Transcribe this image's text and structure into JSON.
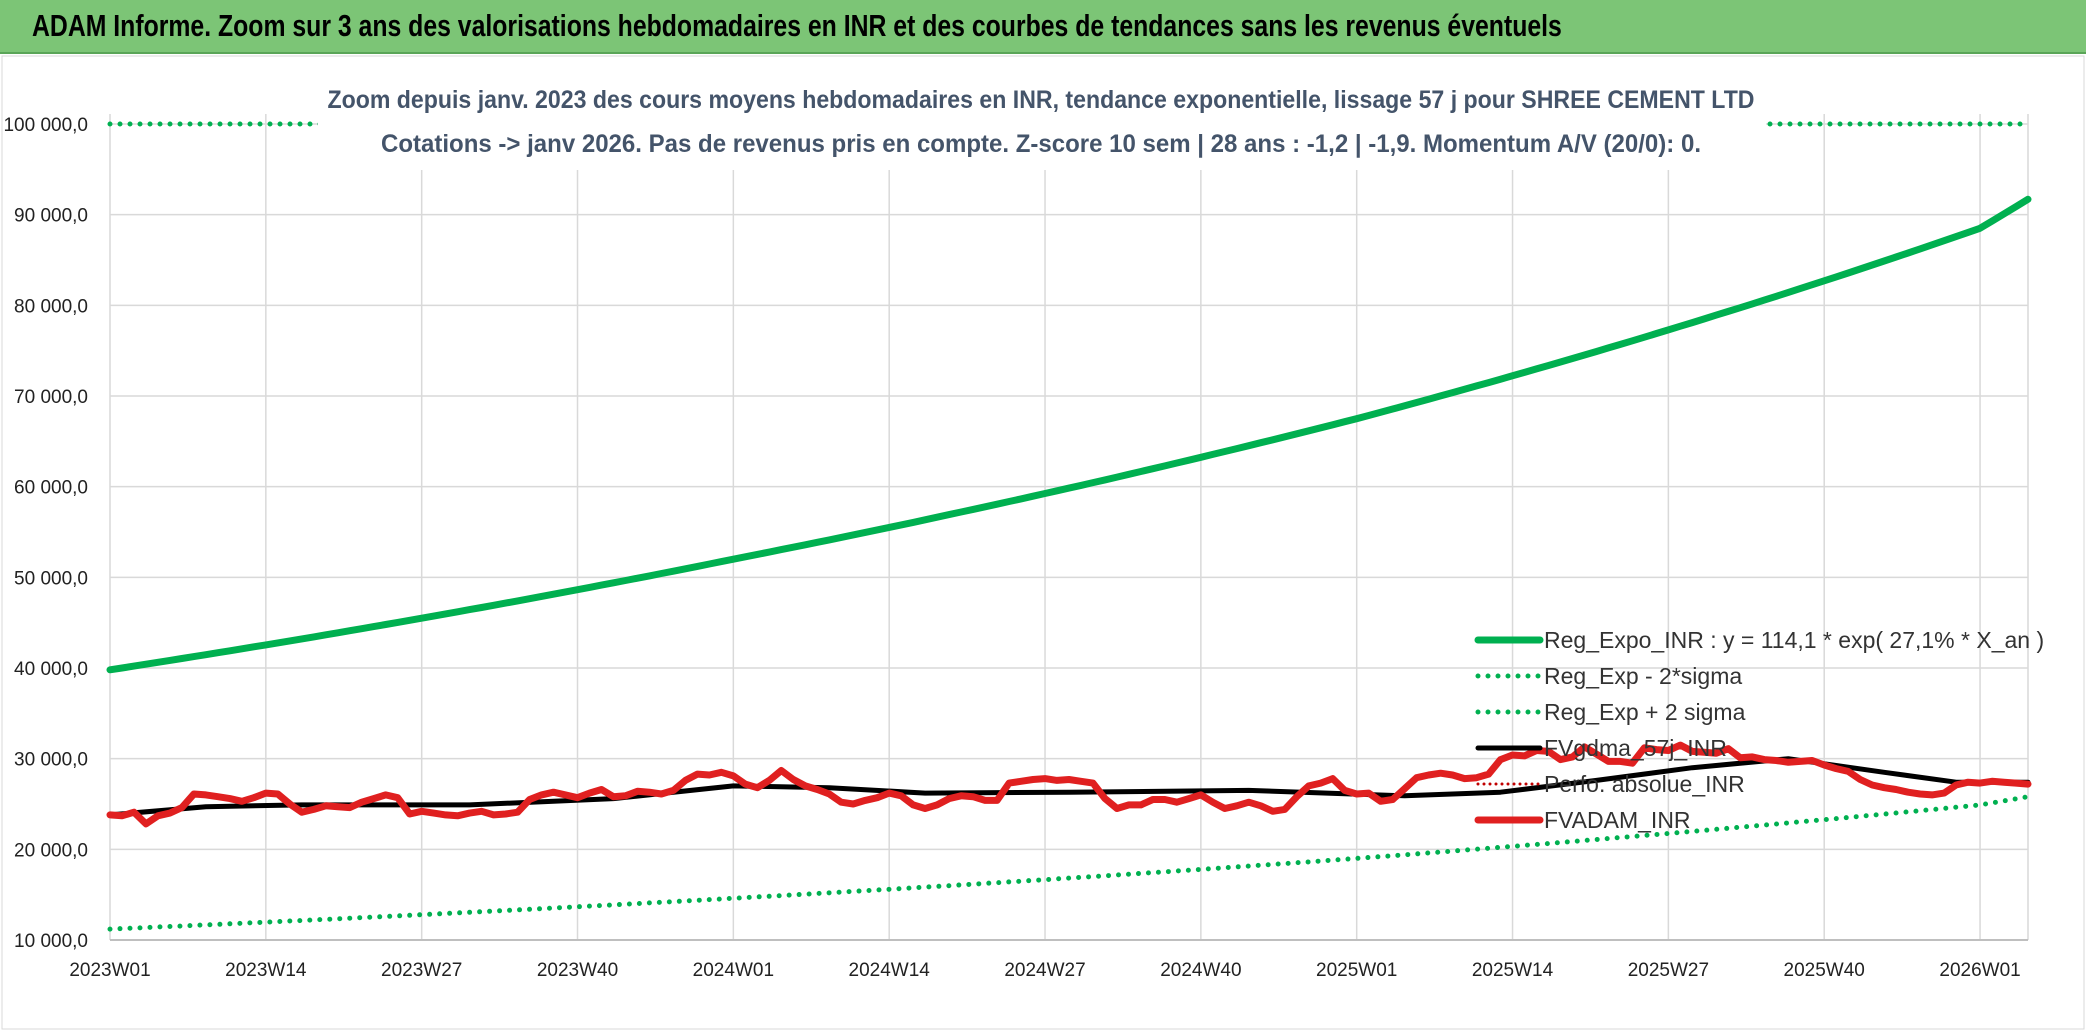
{
  "page": {
    "title": "ADAM Informe. Zoom sur 3 ans des valorisations hebdomadaires en INR et des courbes de tendances sans les revenus éventuels"
  },
  "chart_data": {
    "type": "line",
    "title": "Zoom depuis janv. 2023 des cours moyens hebdomadaires en INR, tendance exponentielle, lissage 57 j pour SHREE CEMENT LTD",
    "subtitle": "Cotations -> janv 2026. Pas de revenus pris en compte. Z-score 10 sem | 28 ans : -1,2 | -1,9. Momentum A/V (20/0): 0.",
    "ylim": [
      10000,
      100000
    ],
    "yticks": [
      10000,
      20000,
      30000,
      40000,
      50000,
      60000,
      70000,
      80000,
      90000,
      100000
    ],
    "ytick_labels": [
      "10 000,0",
      "20 000,0",
      "30 000,0",
      "40 000,0",
      "50 000,0",
      "60 000,0",
      "70 000,0",
      "80 000,0",
      "90 000,0",
      "100 000,0"
    ],
    "x_tick_labels": [
      "2023W01",
      "2023W14",
      "2023W27",
      "2023W40",
      "2024W01",
      "2024W14",
      "2024W27",
      "2024W40",
      "2025W01",
      "2025W14",
      "2025W27",
      "2025W40",
      "2026W01"
    ],
    "weeks_total": 161,
    "grid": true,
    "legend_position": "bottom-right",
    "series": [
      {
        "name": "Reg_Expo_INR : y = 114,1 * exp( 27,1% *  X_an )",
        "style": "solid-thick",
        "color": "#00b050",
        "points": [
          [
            0,
            39800
          ],
          [
            52,
            52000
          ],
          [
            104,
            67500
          ],
          [
            156,
            88500
          ],
          [
            160,
            91700
          ]
        ]
      },
      {
        "name": "Reg_Exp - 2*sigma",
        "style": "dotted",
        "color": "#00b050",
        "points": [
          [
            0,
            11200
          ],
          [
            52,
            14600
          ],
          [
            104,
            19000
          ],
          [
            156,
            24900
          ],
          [
            160,
            25800
          ]
        ]
      },
      {
        "name": "Reg_Exp + 2 sigma",
        "style": "dotted",
        "color": "#00b050",
        "points": [
          [
            0,
            100000
          ],
          [
            160,
            100000
          ]
        ]
      },
      {
        "name": "FVgdma_57j_INR",
        "style": "solid",
        "color": "#000000",
        "points": [
          [
            0,
            23800
          ],
          [
            8,
            24700
          ],
          [
            16,
            24900
          ],
          [
            30,
            24900
          ],
          [
            42,
            25600
          ],
          [
            52,
            27000
          ],
          [
            60,
            26800
          ],
          [
            68,
            26200
          ],
          [
            80,
            26300
          ],
          [
            95,
            26500
          ],
          [
            108,
            25900
          ],
          [
            116,
            26300
          ],
          [
            124,
            27600
          ],
          [
            132,
            29000
          ],
          [
            140,
            30000
          ],
          [
            148,
            28500
          ],
          [
            154,
            27400
          ],
          [
            160,
            27400
          ]
        ]
      },
      {
        "name": "Perfo. absolue_INR",
        "style": "dotted-thin",
        "color": "#c00000",
        "points": []
      },
      {
        "name": "FVADAM_INR",
        "style": "solid-thick",
        "color": "#e02020",
        "points": [
          [
            0,
            23800
          ],
          [
            1,
            23700
          ],
          [
            2,
            24100
          ],
          [
            3,
            22800
          ],
          [
            4,
            23700
          ],
          [
            5,
            24000
          ],
          [
            6,
            24600
          ],
          [
            7,
            26100
          ],
          [
            8,
            26000
          ],
          [
            9,
            25800
          ],
          [
            10,
            25600
          ],
          [
            11,
            25300
          ],
          [
            12,
            25700
          ],
          [
            13,
            26200
          ],
          [
            14,
            26100
          ],
          [
            15,
            25000
          ],
          [
            16,
            24100
          ],
          [
            17,
            24400
          ],
          [
            18,
            24800
          ],
          [
            19,
            24700
          ],
          [
            20,
            24600
          ],
          [
            21,
            25200
          ],
          [
            22,
            25600
          ],
          [
            23,
            26000
          ],
          [
            24,
            25700
          ],
          [
            25,
            23900
          ],
          [
            26,
            24200
          ],
          [
            27,
            24000
          ],
          [
            28,
            23800
          ],
          [
            29,
            23700
          ],
          [
            30,
            24000
          ],
          [
            31,
            24200
          ],
          [
            32,
            23800
          ],
          [
            33,
            23900
          ],
          [
            34,
            24100
          ],
          [
            35,
            25500
          ],
          [
            36,
            26000
          ],
          [
            37,
            26300
          ],
          [
            38,
            26000
          ],
          [
            39,
            25700
          ],
          [
            40,
            26200
          ],
          [
            41,
            26600
          ],
          [
            42,
            25800
          ],
          [
            43,
            25900
          ],
          [
            44,
            26400
          ],
          [
            45,
            26300
          ],
          [
            46,
            26100
          ],
          [
            47,
            26500
          ],
          [
            48,
            27600
          ],
          [
            49,
            28300
          ],
          [
            50,
            28200
          ],
          [
            51,
            28500
          ],
          [
            52,
            28100
          ],
          [
            53,
            27200
          ],
          [
            54,
            26800
          ],
          [
            55,
            27600
          ],
          [
            56,
            28700
          ],
          [
            57,
            27700
          ],
          [
            58,
            27000
          ],
          [
            59,
            26600
          ],
          [
            60,
            26100
          ],
          [
            61,
            25200
          ],
          [
            62,
            25000
          ],
          [
            63,
            25400
          ],
          [
            64,
            25700
          ],
          [
            65,
            26200
          ],
          [
            66,
            25900
          ],
          [
            67,
            24900
          ],
          [
            68,
            24500
          ],
          [
            69,
            24900
          ],
          [
            70,
            25600
          ],
          [
            71,
            25900
          ],
          [
            72,
            25800
          ],
          [
            73,
            25400
          ],
          [
            74,
            25400
          ],
          [
            75,
            27300
          ],
          [
            76,
            27500
          ],
          [
            77,
            27700
          ],
          [
            78,
            27800
          ],
          [
            79,
            27600
          ],
          [
            80,
            27700
          ],
          [
            81,
            27500
          ],
          [
            82,
            27300
          ],
          [
            83,
            25600
          ],
          [
            84,
            24500
          ],
          [
            85,
            24900
          ],
          [
            86,
            24900
          ],
          [
            87,
            25500
          ],
          [
            88,
            25500
          ],
          [
            89,
            25200
          ],
          [
            90,
            25600
          ],
          [
            91,
            26000
          ],
          [
            92,
            25200
          ],
          [
            93,
            24500
          ],
          [
            94,
            24800
          ],
          [
            95,
            25200
          ],
          [
            96,
            24800
          ],
          [
            97,
            24200
          ],
          [
            98,
            24400
          ],
          [
            99,
            25800
          ],
          [
            100,
            27000
          ],
          [
            101,
            27300
          ],
          [
            102,
            27800
          ],
          [
            103,
            26500
          ],
          [
            104,
            26100
          ],
          [
            105,
            26200
          ],
          [
            106,
            25300
          ],
          [
            107,
            25500
          ],
          [
            108,
            26700
          ],
          [
            109,
            27900
          ],
          [
            110,
            28200
          ],
          [
            111,
            28400
          ],
          [
            112,
            28200
          ],
          [
            113,
            27800
          ],
          [
            114,
            27900
          ],
          [
            115,
            28300
          ],
          [
            116,
            29900
          ],
          [
            117,
            30400
          ],
          [
            118,
            30300
          ],
          [
            119,
            30900
          ],
          [
            120,
            30800
          ],
          [
            121,
            29900
          ],
          [
            122,
            30200
          ],
          [
            123,
            31300
          ],
          [
            124,
            30500
          ],
          [
            125,
            29700
          ],
          [
            126,
            29700
          ],
          [
            127,
            29500
          ],
          [
            128,
            31200
          ],
          [
            129,
            31000
          ],
          [
            130,
            30900
          ],
          [
            131,
            31500
          ],
          [
            132,
            30800
          ],
          [
            133,
            30700
          ],
          [
            134,
            30600
          ],
          [
            135,
            31100
          ],
          [
            136,
            30100
          ],
          [
            137,
            30200
          ],
          [
            138,
            29900
          ],
          [
            139,
            29800
          ],
          [
            140,
            29600
          ],
          [
            141,
            29700
          ],
          [
            142,
            29800
          ],
          [
            143,
            29300
          ],
          [
            144,
            28900
          ],
          [
            145,
            28600
          ],
          [
            146,
            27700
          ],
          [
            147,
            27100
          ],
          [
            148,
            26800
          ],
          [
            149,
            26600
          ],
          [
            150,
            26300
          ],
          [
            151,
            26100
          ],
          [
            152,
            26000
          ],
          [
            153,
            26200
          ],
          [
            154,
            27100
          ],
          [
            155,
            27400
          ],
          [
            156,
            27300
          ],
          [
            157,
            27500
          ],
          [
            158,
            27400
          ],
          [
            159,
            27300
          ],
          [
            160,
            27200
          ]
        ]
      }
    ]
  }
}
